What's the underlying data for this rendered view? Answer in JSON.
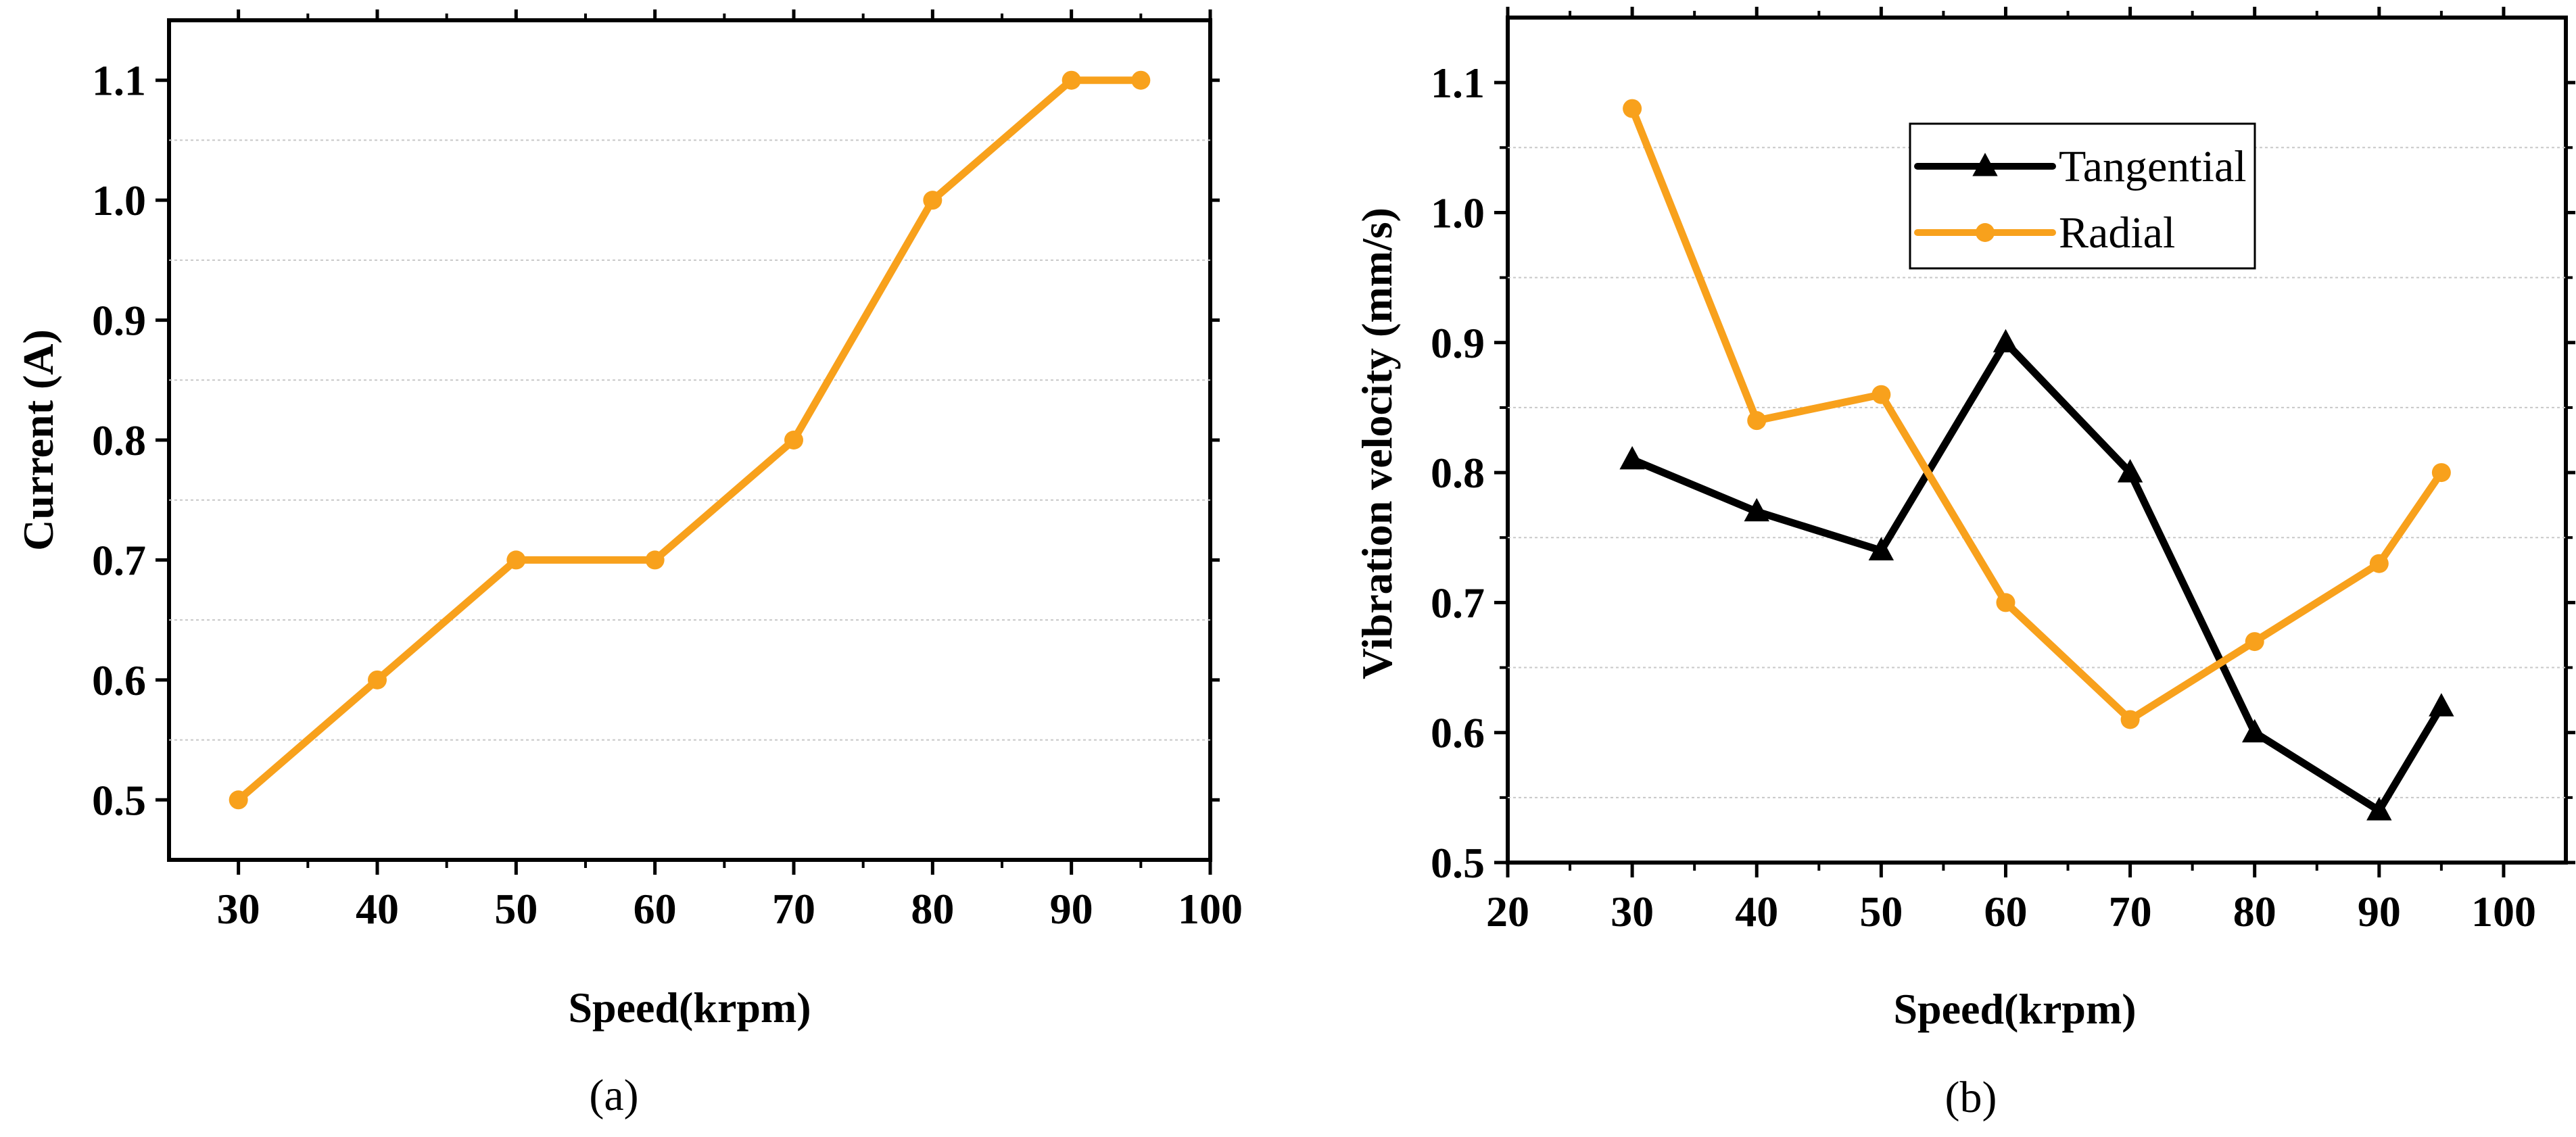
{
  "chart_data": [
    {
      "type": "line",
      "panel_label": "(a)",
      "xlabel": "Speed(krpm)",
      "ylabel": "Current (A)",
      "xlim": [
        25,
        100
      ],
      "ylim": [
        0.45,
        1.15
      ],
      "x_ticks": [
        30,
        40,
        50,
        60,
        70,
        80,
        90,
        100
      ],
      "y_ticks": [
        0.5,
        0.6,
        0.7,
        0.8,
        0.9,
        1.0,
        1.1
      ],
      "x_tick_labels": [
        "30",
        "40",
        "50",
        "60",
        "70",
        "80",
        "90",
        "100"
      ],
      "y_tick_labels": [
        "0.5",
        "0.6",
        "0.7",
        "0.8",
        "0.9",
        "1.0",
        "1.1"
      ],
      "gridlines_y": [
        0.55,
        0.65,
        0.75,
        0.85,
        0.95,
        1.05
      ],
      "series": [
        {
          "name": "Current",
          "color": "#F8A11C",
          "marker": "circle",
          "x": [
            30,
            40,
            50,
            60,
            70,
            80,
            90,
            95
          ],
          "values": [
            0.5,
            0.6,
            0.7,
            0.7,
            0.8,
            1.0,
            1.1,
            1.1
          ]
        }
      ]
    },
    {
      "type": "line",
      "panel_label": "(b)",
      "xlabel": "Speed(krpm)",
      "ylabel": "Vibration velocity (mm/s)",
      "xlim": [
        20,
        105
      ],
      "ylim": [
        0.5,
        1.15
      ],
      "x_ticks": [
        20,
        30,
        40,
        50,
        60,
        70,
        80,
        90,
        100
      ],
      "y_ticks": [
        0.5,
        0.6,
        0.7,
        0.8,
        0.9,
        1.0,
        1.1
      ],
      "x_tick_labels": [
        "20",
        "30",
        "40",
        "50",
        "60",
        "70",
        "80",
        "90",
        "100"
      ],
      "y_tick_labels": [
        "0.5",
        "0.6",
        "0.7",
        "0.8",
        "0.9",
        "1.0",
        "1.1"
      ],
      "gridlines_y": [
        0.55,
        0.65,
        0.75,
        0.85,
        0.95,
        1.05
      ],
      "legend_position": "top-center",
      "series": [
        {
          "name": "Tangential",
          "color": "#000000",
          "marker": "triangle",
          "x": [
            30,
            40,
            50,
            60,
            70,
            80,
            90,
            95
          ],
          "values": [
            0.81,
            0.77,
            0.74,
            0.9,
            0.8,
            0.6,
            0.54,
            0.62
          ]
        },
        {
          "name": "Radial",
          "color": "#F8A11C",
          "marker": "circle",
          "x": [
            30,
            40,
            50,
            60,
            70,
            80,
            90,
            95
          ],
          "values": [
            1.08,
            0.84,
            0.86,
            0.7,
            0.61,
            0.67,
            0.73,
            0.8
          ]
        }
      ]
    }
  ]
}
